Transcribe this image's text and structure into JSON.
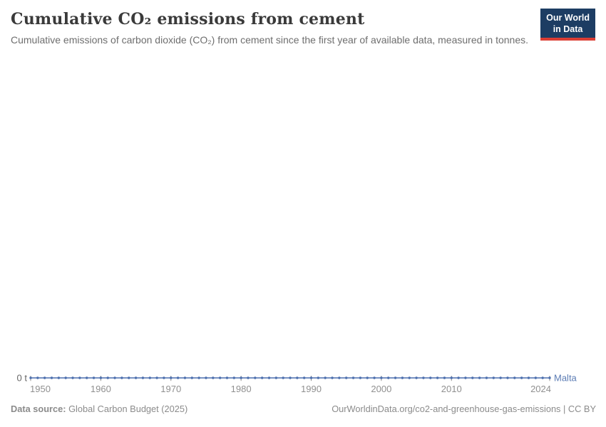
{
  "chart_data": {
    "type": "line",
    "title": "Cumulative CO₂ emissions from cement",
    "subtitle": "Cumulative emissions of carbon dioxide (CO₂) from cement since the first year of available data, measured in tonnes.",
    "entity": "Malta",
    "unit": "tonnes",
    "grid": false,
    "legend": "inline-entity-label-right",
    "x_ticks": [
      1950,
      1960,
      1970,
      1980,
      1990,
      2000,
      2010,
      2024
    ],
    "y_ticks": [
      {
        "value": 0,
        "label": "0 t"
      }
    ],
    "x_tick_color": "#909090",
    "y_tick_label_color": "#666666",
    "x": [
      1950,
      1951,
      1952,
      1953,
      1954,
      1955,
      1956,
      1957,
      1958,
      1959,
      1960,
      1961,
      1962,
      1963,
      1964,
      1965,
      1966,
      1967,
      1968,
      1969,
      1970,
      1971,
      1972,
      1973,
      1974,
      1975,
      1976,
      1977,
      1978,
      1979,
      1980,
      1981,
      1982,
      1983,
      1984,
      1985,
      1986,
      1987,
      1988,
      1989,
      1990,
      1991,
      1992,
      1993,
      1994,
      1995,
      1996,
      1997,
      1998,
      1999,
      2000,
      2001,
      2002,
      2003,
      2004,
      2005,
      2006,
      2007,
      2008,
      2009,
      2010,
      2011,
      2012,
      2013,
      2014,
      2015,
      2016,
      2017,
      2018,
      2019,
      2020,
      2021,
      2022,
      2023,
      2024
    ],
    "series": [
      {
        "name": "Malta",
        "color": "#4c6fae",
        "label_color": "#5b7cb4",
        "values": [
          0,
          0,
          0,
          0,
          0,
          0,
          0,
          0,
          0,
          0,
          0,
          0,
          0,
          0,
          0,
          0,
          0,
          0,
          0,
          0,
          0,
          0,
          0,
          0,
          0,
          0,
          0,
          0,
          0,
          0,
          0,
          0,
          0,
          0,
          0,
          0,
          0,
          0,
          0,
          0,
          0,
          0,
          0,
          0,
          0,
          0,
          0,
          0,
          0,
          0,
          0,
          0,
          0,
          0,
          0,
          0,
          0,
          0,
          0,
          0,
          0,
          0,
          0,
          0,
          0,
          0,
          0,
          0,
          0,
          0,
          0,
          0,
          0,
          0,
          0
        ]
      }
    ]
  },
  "logo": {
    "line1": "Our World",
    "line2": "in Data",
    "background": "#1d3d63",
    "accent": "#dc3e34",
    "text_color": "#ffffff"
  },
  "footer": {
    "source_label": "Data source:",
    "source_value": "Global Carbon Budget (2025)",
    "credit": "OurWorldinData.org/co2-and-greenhouse-gas-emissions | CC BY"
  }
}
